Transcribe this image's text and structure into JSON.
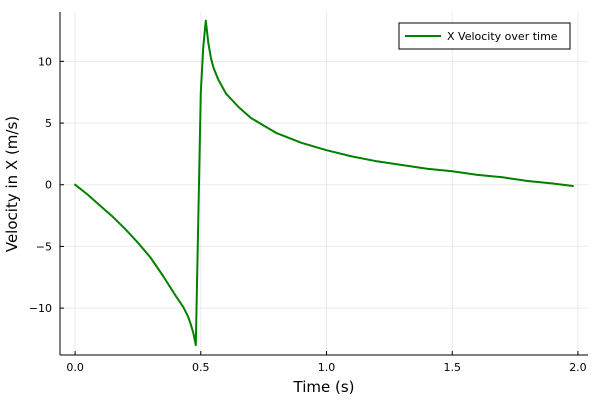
{
  "chart_data": {
    "type": "line",
    "title": "",
    "xlabel": "Time (s)",
    "ylabel": "Velocity in X (m/s)",
    "xlim": [
      -0.06,
      2.04
    ],
    "ylim": [
      -13.8,
      14.0
    ],
    "xticks": [
      0.0,
      0.5,
      1.0,
      1.5,
      2.0
    ],
    "xtick_labels": [
      "0.0",
      "0.5",
      "1.0",
      "1.5",
      "2.0"
    ],
    "yticks": [
      -10,
      -5,
      0,
      5,
      10
    ],
    "ytick_labels": [
      "−10",
      "−5",
      "0",
      "5",
      "10"
    ],
    "grid": true,
    "legend_position": "top-right",
    "series": [
      {
        "name": "X Velocity over time",
        "color": "#008000",
        "x": [
          0.0,
          0.05,
          0.1,
          0.15,
          0.2,
          0.25,
          0.3,
          0.35,
          0.4,
          0.43,
          0.45,
          0.46,
          0.47,
          0.48,
          0.5,
          0.51,
          0.52,
          0.53,
          0.54,
          0.55,
          0.57,
          0.6,
          0.65,
          0.7,
          0.8,
          0.9,
          1.0,
          1.1,
          1.2,
          1.3,
          1.4,
          1.5,
          1.6,
          1.7,
          1.8,
          1.9,
          1.98
        ],
        "y": [
          0.0,
          -0.8,
          -1.7,
          -2.6,
          -3.6,
          -4.7,
          -5.9,
          -7.4,
          -9.0,
          -9.9,
          -10.7,
          -11.3,
          -12.0,
          -13.0,
          7.5,
          11.2,
          13.3,
          11.5,
          10.3,
          9.5,
          8.5,
          7.4,
          6.3,
          5.4,
          4.2,
          3.4,
          2.8,
          2.3,
          1.9,
          1.6,
          1.3,
          1.1,
          0.8,
          0.6,
          0.3,
          0.1,
          -0.1
        ]
      }
    ]
  }
}
